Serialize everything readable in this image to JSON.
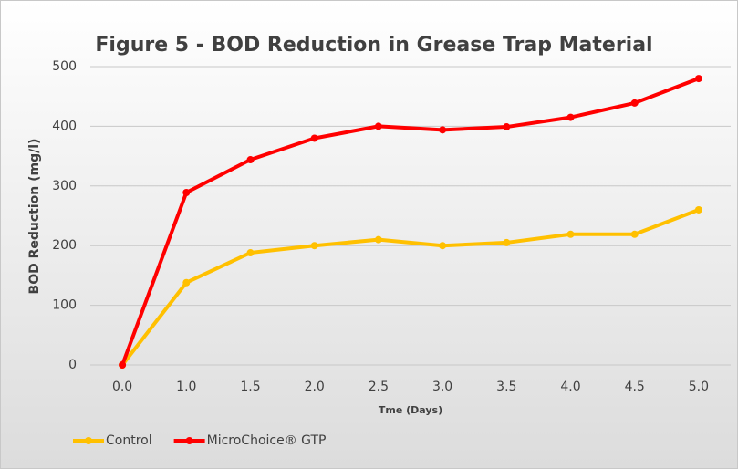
{
  "chart_data": {
    "type": "line",
    "title": "Figure 5 - BOD Reduction in Grease Trap Material",
    "x_label": "Tme (Days)",
    "y_label": "BOD Reduction (mg/l)",
    "categories": [
      "0.0",
      "1.0",
      "1.5",
      "2.0",
      "2.5",
      "3.0",
      "3.5",
      "4.0",
      "4.5",
      "5.0"
    ],
    "series": [
      {
        "name": "Control",
        "color": "#ffc000",
        "values": [
          0,
          138,
          188,
          200,
          210,
          200,
          205,
          219,
          219,
          260
        ]
      },
      {
        "name": "MicroChoice® GTP",
        "color": "#ff0000",
        "values": [
          0,
          289,
          344,
          380,
          400,
          394,
          399,
          415,
          439,
          480
        ]
      }
    ],
    "ylim": [
      0,
      500
    ],
    "yticks": [
      0,
      100,
      200,
      300,
      400,
      500
    ],
    "grid": true,
    "legend": "bottom-left"
  }
}
